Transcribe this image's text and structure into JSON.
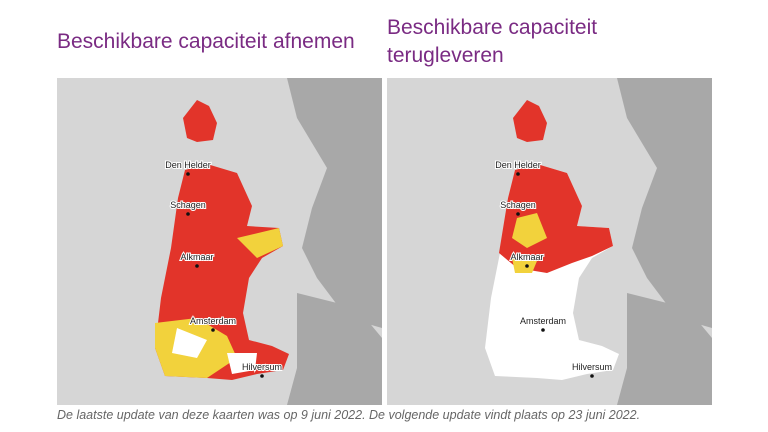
{
  "maps": [
    {
      "title": "Beschikbare capaciteit afnemen",
      "cities": [
        "Den Helder",
        "Schagen",
        "Alkmaar",
        "Amsterdam",
        "Hilversum"
      ]
    },
    {
      "title": "Beschikbare capaciteit terugleveren",
      "cities": [
        "Den Helder",
        "Schagen",
        "Alkmaar",
        "Amsterdam",
        "Hilversum"
      ]
    }
  ],
  "caption": "De laatste update van deze kaarten was op 9 juni 2022. De volgende update vindt plaats op 23 juni 2022."
}
